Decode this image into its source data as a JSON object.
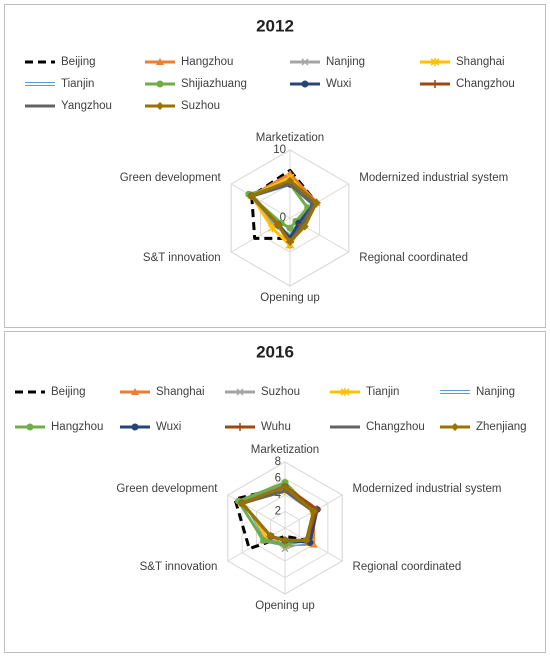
{
  "chart_data": [
    {
      "type": "radar",
      "title": "2012",
      "axes": [
        "Marketization",
        "Modernized industrial system",
        "Regional coordinated",
        "Opening up",
        "S&T innovation",
        "Green development"
      ],
      "rlim": [
        0,
        10
      ],
      "rticks": [
        0,
        5,
        10
      ],
      "grid": true,
      "series": [
        {
          "name": "Beijing",
          "color": "#000000",
          "line_style": "dashed",
          "marker": "none",
          "values": [
            7,
            4.5,
            2,
            3,
            6,
            6.5
          ]
        },
        {
          "name": "Hangzhou",
          "color": "#ed7d31",
          "line_style": "solid",
          "marker": "triangle",
          "values": [
            6.5,
            4.5,
            2,
            4,
            2,
            6.5
          ]
        },
        {
          "name": "Nanjing",
          "color": "#a5a5a5",
          "line_style": "solid",
          "marker": "x",
          "values": [
            5.5,
            4,
            1.5,
            2.5,
            2.5,
            6.5
          ]
        },
        {
          "name": "Shanghai",
          "color": "#ffc000",
          "line_style": "solid",
          "marker": "star",
          "values": [
            6,
            4,
            2,
            4,
            3,
            6.5
          ]
        },
        {
          "name": "Tianjin",
          "color": "#5b9bd5",
          "line_style": "double",
          "marker": "none",
          "values": [
            5,
            4,
            1.5,
            3,
            2,
            6.5
          ]
        },
        {
          "name": "Shijiazhuang",
          "color": "#70ad47",
          "line_style": "solid",
          "marker": "circle",
          "values": [
            5,
            3,
            1,
            1.5,
            1.5,
            7
          ]
        },
        {
          "name": "Wuxi",
          "color": "#264478",
          "line_style": "solid",
          "marker": "circle",
          "values": [
            5,
            4,
            1.5,
            3,
            2,
            6.5
          ]
        },
        {
          "name": "Changzhou",
          "color": "#9e480e",
          "line_style": "solid",
          "marker": "plus",
          "values": [
            5,
            4.5,
            2,
            3.5,
            2,
            6.5
          ]
        },
        {
          "name": "Yangzhou",
          "color": "#636363",
          "line_style": "solid",
          "marker": "none",
          "values": [
            5,
            4,
            2,
            3.5,
            2,
            6.5
          ]
        },
        {
          "name": "Suzhou",
          "color": "#997300",
          "line_style": "solid",
          "marker": "diamond",
          "values": [
            5.5,
            4.5,
            2.5,
            3.5,
            2,
            6.5
          ]
        }
      ]
    },
    {
      "type": "radar",
      "title": "2016",
      "axes": [
        "Marketization",
        "Modernized industrial system",
        "Regional coordinated",
        "Opening up",
        "S&T innovation",
        "Green development"
      ],
      "rlim": [
        0,
        8
      ],
      "rticks": [
        2,
        4,
        6,
        8
      ],
      "grid": true,
      "series": [
        {
          "name": "Beijing",
          "color": "#000000",
          "line_style": "dashed",
          "marker": "none",
          "values": [
            5,
            4,
            3,
            1,
            5,
            7
          ]
        },
        {
          "name": "Shanghai",
          "color": "#ed7d31",
          "line_style": "solid",
          "marker": "triangle",
          "values": [
            5.5,
            4,
            4,
            2,
            3,
            6
          ]
        },
        {
          "name": "Suzhou",
          "color": "#a5a5a5",
          "line_style": "solid",
          "marker": "x",
          "values": [
            4.5,
            4,
            3,
            2.5,
            2,
            6
          ]
        },
        {
          "name": "Tianjin",
          "color": "#ffc000",
          "line_style": "solid",
          "marker": "star",
          "values": [
            4.5,
            4,
            3.5,
            2,
            2.5,
            6
          ]
        },
        {
          "name": "Nanjing",
          "color": "#5b9bd5",
          "line_style": "double",
          "marker": "none",
          "values": [
            5,
            4,
            3.5,
            2,
            3,
            6
          ]
        },
        {
          "name": "Hangzhou",
          "color": "#70ad47",
          "line_style": "solid",
          "marker": "circle",
          "values": [
            5.5,
            4,
            3,
            2,
            3,
            6.5
          ]
        },
        {
          "name": "Wuxi",
          "color": "#264478",
          "line_style": "solid",
          "marker": "circle",
          "values": [
            5,
            4.5,
            3.5,
            1.5,
            2,
            6
          ]
        },
        {
          "name": "Wuhu",
          "color": "#9e480e",
          "line_style": "solid",
          "marker": "plus",
          "values": [
            5,
            4.5,
            3,
            1.5,
            2,
            6
          ]
        },
        {
          "name": "Changzhou",
          "color": "#636363",
          "line_style": "solid",
          "marker": "none",
          "values": [
            4.5,
            4,
            3,
            1.5,
            2,
            6
          ]
        },
        {
          "name": "Zhenjiang",
          "color": "#997300",
          "line_style": "solid",
          "marker": "diamond",
          "values": [
            5,
            4,
            3,
            1.5,
            2,
            6
          ]
        }
      ]
    }
  ]
}
